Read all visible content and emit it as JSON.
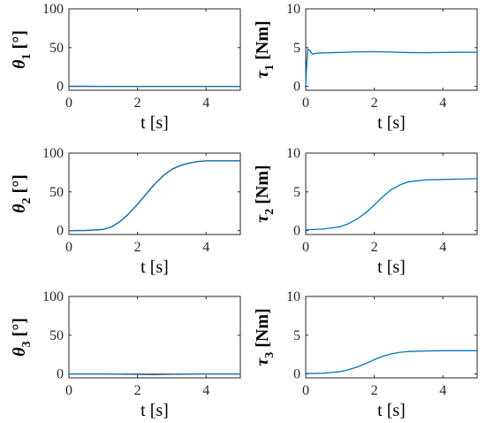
{
  "colors": {
    "blue": "#0072BD",
    "orange": "#D95319",
    "axis": "#262626"
  },
  "chart_data": [
    {
      "type": "line",
      "xlabel": "t [s]",
      "ylabel": {
        "symbol": "θ",
        "sub": "1",
        "unit": "[°]"
      },
      "xlim": [
        0,
        5
      ],
      "ylim": [
        -5,
        100
      ],
      "xticks": [
        "0",
        "2",
        "4"
      ],
      "yticks": [
        "0",
        "50",
        "100"
      ],
      "series": [
        {
          "color": "#0072BD",
          "x": [
            0,
            0.1,
            0.3,
            1,
            2,
            3,
            4,
            5
          ],
          "y": [
            0,
            0.3,
            0.2,
            0,
            0,
            0,
            0,
            0
          ]
        },
        {
          "color": "#D95319",
          "x": [
            0,
            1,
            2,
            3,
            4,
            5
          ],
          "y": [
            0,
            0,
            0,
            0,
            0,
            0
          ]
        }
      ]
    },
    {
      "type": "line",
      "xlabel": "t [s]",
      "ylabel": {
        "symbol": "τ",
        "sub": "1",
        "unit": "[Nm]"
      },
      "xlim": [
        0,
        5
      ],
      "ylim": [
        -0.5,
        10
      ],
      "xticks": [
        "0",
        "2",
        "4"
      ],
      "yticks": [
        "0",
        "5",
        "10"
      ],
      "series": [
        {
          "color": "#0072BD",
          "x": [
            0,
            0.03,
            0.06,
            0.1,
            0.15,
            0.2,
            0.25,
            0.3,
            0.4,
            0.6,
            1,
            1.5,
            2,
            2.5,
            3,
            3.5,
            4,
            4.5,
            5
          ],
          "y": [
            0.2,
            3.0,
            4.8,
            4.7,
            4.4,
            4.15,
            4.2,
            4.28,
            4.3,
            4.32,
            4.38,
            4.45,
            4.48,
            4.42,
            4.36,
            4.34,
            4.38,
            4.4,
            4.4
          ]
        }
      ]
    },
    {
      "type": "line",
      "xlabel": "t [s]",
      "ylabel": {
        "symbol": "θ",
        "sub": "2",
        "unit": "[°]"
      },
      "xlim": [
        0,
        5
      ],
      "ylim": [
        -5,
        100
      ],
      "xticks": [
        "0",
        "2",
        "4"
      ],
      "yticks": [
        "0",
        "50",
        "100"
      ],
      "series": [
        {
          "color": "#0072BD",
          "x": [
            0,
            0.5,
            1,
            1.25,
            1.5,
            1.75,
            2,
            2.25,
            2.5,
            2.75,
            3,
            3.25,
            3.5,
            3.75,
            4,
            4.5,
            5
          ],
          "y": [
            0,
            0.2,
            1.5,
            5,
            12,
            22,
            34,
            47,
            60,
            71,
            79,
            84,
            87,
            89,
            90,
            90,
            90
          ]
        },
        {
          "color": "#D95319",
          "x": [
            0,
            0.5,
            1,
            1.25,
            1.5,
            1.75,
            2,
            2.25,
            2.5,
            2.75,
            3,
            3.25,
            3.5,
            3.75,
            4,
            4.5,
            5
          ],
          "y": [
            0,
            0.2,
            1.5,
            5,
            12,
            22,
            34,
            47,
            60,
            71,
            79,
            84,
            87,
            89,
            90,
            90,
            90
          ]
        }
      ]
    },
    {
      "type": "line",
      "xlabel": "t [s]",
      "ylabel": {
        "symbol": "τ",
        "sub": "2",
        "unit": "[Nm]"
      },
      "xlim": [
        0,
        5
      ],
      "ylim": [
        -0.5,
        10
      ],
      "xticks": [
        "0",
        "2",
        "4"
      ],
      "yticks": [
        "0",
        "5",
        "10"
      ],
      "series": [
        {
          "color": "#0072BD",
          "x": [
            0,
            0.5,
            1,
            1.25,
            1.5,
            1.75,
            2,
            2.25,
            2.5,
            2.75,
            3,
            3.5,
            4,
            4.5,
            5
          ],
          "y": [
            0.1,
            0.2,
            0.5,
            0.9,
            1.5,
            2.3,
            3.3,
            4.4,
            5.3,
            5.9,
            6.3,
            6.55,
            6.6,
            6.65,
            6.7
          ]
        }
      ]
    },
    {
      "type": "line",
      "xlabel": "t [s]",
      "ylabel": {
        "symbol": "θ",
        "sub": "3",
        "unit": "[°]"
      },
      "xlim": [
        0,
        5
      ],
      "ylim": [
        -5,
        100
      ],
      "xticks": [
        "0",
        "2",
        "4"
      ],
      "yticks": [
        "0",
        "50",
        "100"
      ],
      "series": [
        {
          "color": "#0072BD",
          "x": [
            0,
            1,
            2,
            2.5,
            3,
            4,
            5
          ],
          "y": [
            0,
            0,
            -0.5,
            -0.8,
            -0.4,
            0,
            0
          ]
        },
        {
          "color": "#D95319",
          "x": [
            0,
            1,
            2,
            3,
            4,
            5
          ],
          "y": [
            0,
            0,
            0,
            0,
            0,
            0
          ]
        }
      ]
    },
    {
      "type": "line",
      "xlabel": "t [s]",
      "ylabel": {
        "symbol": "τ",
        "sub": "3",
        "unit": "[Nm]"
      },
      "xlim": [
        0,
        5
      ],
      "ylim": [
        -0.5,
        10
      ],
      "xticks": [
        "0",
        "2",
        "4"
      ],
      "yticks": [
        "0",
        "5",
        "10"
      ],
      "series": [
        {
          "color": "#0072BD",
          "x": [
            0,
            0.5,
            1,
            1.25,
            1.5,
            1.75,
            2,
            2.25,
            2.5,
            2.75,
            3,
            3.5,
            4,
            4.5,
            5
          ],
          "y": [
            0.05,
            0.1,
            0.3,
            0.55,
            0.9,
            1.35,
            1.85,
            2.3,
            2.6,
            2.8,
            2.9,
            2.97,
            3.0,
            3.0,
            3.0
          ]
        }
      ]
    }
  ]
}
